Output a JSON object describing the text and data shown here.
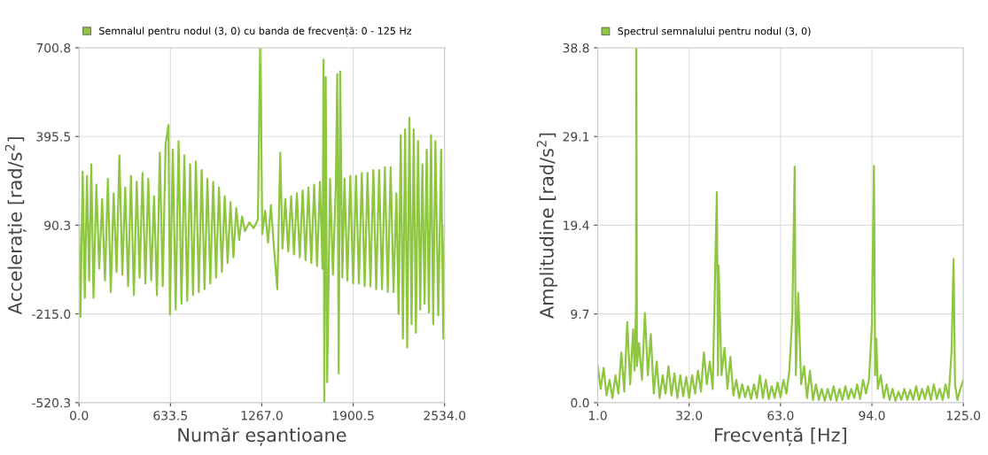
{
  "chart_data": [
    {
      "type": "line",
      "xlabel": "Număr eșantioane",
      "ylabel": "Accelerație [rad/s$^{2}$]",
      "legend": "top",
      "grid": true,
      "marker": "none",
      "line_style": "solid",
      "xlim": [
        0,
        2534
      ],
      "ylim": [
        -520.3,
        700.8
      ],
      "xticks": [
        {
          "value": 0,
          "label": "0.0"
        },
        633.5,
        {
          "value": 1267,
          "label": "1267.0"
        },
        1900.5,
        {
          "value": 2534,
          "label": "2534.0"
        }
      ],
      "yticks": [
        -520.3,
        {
          "value": -215,
          "label": "-215.0"
        },
        90.3,
        395.5,
        700.8
      ],
      "series": [
        {
          "name": "Semnalul pentru nodul (3, 0) cu banda de frecvență: 0 - 125 Hz",
          "color": "#8dc63f",
          "x": [
            0,
            10,
            25,
            40,
            55,
            70,
            85,
            100,
            120,
            140,
            160,
            180,
            200,
            220,
            240,
            260,
            280,
            300,
            320,
            340,
            360,
            380,
            400,
            420,
            440,
            460,
            480,
            500,
            520,
            540,
            560,
            580,
            600,
            620,
            630,
            650,
            670,
            690,
            710,
            730,
            750,
            770,
            790,
            810,
            830,
            850,
            870,
            890,
            910,
            930,
            950,
            970,
            990,
            1010,
            1030,
            1050,
            1070,
            1090,
            1110,
            1130,
            1150,
            1180,
            1210,
            1240,
            1255,
            1262,
            1270,
            1290,
            1310,
            1330,
            1350,
            1374,
            1395,
            1410,
            1430,
            1450,
            1470,
            1490,
            1510,
            1530,
            1550,
            1570,
            1590,
            1610,
            1630,
            1650,
            1670,
            1688,
            1695,
            1700,
            1710,
            1720,
            1740,
            1760,
            1780,
            1790,
            1800,
            1810,
            1825,
            1840,
            1860,
            1880,
            1900,
            1920,
            1940,
            1960,
            1980,
            2000,
            2020,
            2040,
            2060,
            2080,
            2100,
            2120,
            2140,
            2160,
            2180,
            2200,
            2215,
            2230,
            2245,
            2260,
            2275,
            2290,
            2305,
            2320,
            2335,
            2350,
            2365,
            2380,
            2395,
            2410,
            2425,
            2440,
            2455,
            2470,
            2490,
            2510,
            2525,
            2534
          ],
          "values": [
            90,
            -225,
            275,
            -160,
            260,
            -100,
            300,
            -160,
            230,
            -60,
            180,
            -100,
            250,
            -140,
            200,
            -70,
            330,
            -80,
            220,
            -120,
            260,
            -150,
            240,
            -90,
            270,
            -110,
            250,
            -100,
            190,
            -150,
            340,
            -120,
            370,
            435,
            -217,
            350,
            -200,
            380,
            -180,
            330,
            -170,
            300,
            -150,
            310,
            -140,
            280,
            -130,
            250,
            -110,
            240,
            -90,
            220,
            -70,
            190,
            -40,
            170,
            -20,
            150,
            40,
            120,
            70,
            100,
            80,
            110,
            700,
            470,
            60,
            140,
            30,
            160,
            20,
            -130,
            340,
            10,
            180,
            0,
            190,
            -10,
            200,
            -20,
            210,
            -30,
            220,
            -40,
            230,
            -50,
            240,
            -60,
            660,
            -520,
            600,
            -450,
            250,
            -80,
            230,
            610,
            -420,
            620,
            -90,
            250,
            -100,
            260,
            -110,
            260,
            -110,
            270,
            -120,
            270,
            -120,
            280,
            -130,
            280,
            -130,
            290,
            -140,
            290,
            -140,
            200,
            -215,
            400,
            -300,
            420,
            -330,
            460,
            -250,
            420,
            -280,
            380,
            -200,
            300,
            -180,
            350,
            -210,
            400,
            -250,
            380,
            -220,
            350,
            -300,
            90
          ]
        }
      ]
    },
    {
      "type": "line",
      "xlabel": "Frecvență [Hz]",
      "ylabel": "Amplitudine [rad/s$^{2}$]",
      "legend": "top",
      "grid": true,
      "marker": "none",
      "line_style": "solid",
      "xlim": [
        1,
        125
      ],
      "ylim": [
        0,
        38.8
      ],
      "xticks": [
        {
          "value": 1,
          "label": "1.0"
        },
        {
          "value": 32,
          "label": "32.0"
        },
        {
          "value": 63,
          "label": "63.0"
        },
        {
          "value": 94,
          "label": "94.0"
        },
        {
          "value": 125,
          "label": "125.0"
        }
      ],
      "yticks": [
        {
          "value": 0,
          "label": "0.0"
        },
        9.7,
        19.4,
        29.1,
        38.8
      ],
      "series": [
        {
          "name": "Spectrul semnalului pentru nodul (3, 0)",
          "color": "#8dc63f",
          "x": [
            1,
            2,
            3,
            4,
            5,
            6,
            7,
            8,
            9,
            10,
            11,
            12,
            13,
            13.5,
            14,
            14.1,
            14.3,
            15,
            16,
            17,
            18,
            19,
            20,
            21,
            22,
            23,
            24,
            25,
            26,
            27,
            28,
            29,
            30,
            31,
            32,
            33,
            34,
            35,
            36,
            37,
            38,
            39,
            40,
            41,
            41.4,
            41.8,
            42,
            43,
            44,
            45,
            46,
            47,
            48,
            49,
            50,
            51,
            52,
            53,
            54,
            55,
            56,
            57,
            58,
            59,
            60,
            61,
            62,
            63,
            64,
            65,
            66,
            67,
            67.8,
            68.2,
            69,
            70,
            71,
            72,
            73,
            74,
            75,
            76,
            77,
            78,
            79,
            80,
            81,
            82,
            83,
            84,
            85,
            86,
            87,
            88,
            89,
            90,
            91,
            92,
            93,
            94,
            94.7,
            95.1,
            95.5,
            96,
            97,
            98,
            99,
            100,
            101,
            102,
            103,
            104,
            105,
            106,
            107,
            108,
            109,
            110,
            111,
            112,
            113,
            114,
            115,
            116,
            117,
            118,
            119,
            120,
            121,
            121.7,
            122.2,
            123,
            124,
            125
          ],
          "values": [
            4.0,
            1.5,
            3.8,
            0.8,
            2.5,
            0.5,
            3.0,
            1.0,
            5.5,
            1.2,
            8.8,
            2.0,
            8.0,
            3.5,
            11,
            38.8,
            4,
            6.5,
            2.5,
            9.8,
            3.0,
            7.5,
            1.0,
            4.5,
            0.5,
            3.0,
            1.0,
            4.0,
            0.8,
            3.2,
            0.5,
            3.0,
            0.7,
            2.8,
            0.5,
            3.0,
            1.0,
            3.5,
            1.2,
            5.5,
            2.0,
            4.5,
            1.5,
            17,
            23.0,
            3,
            15,
            3,
            6,
            1.5,
            5,
            0.8,
            2.5,
            0.5,
            2.0,
            0.6,
            1.8,
            0.4,
            2.0,
            0.5,
            3.0,
            0.5,
            2.5,
            0.4,
            1.8,
            0.5,
            2.2,
            0.6,
            2.5,
            1.0,
            3.5,
            9.5,
            25.8,
            3,
            12,
            2,
            4,
            0.5,
            3.5,
            0.3,
            2.0,
            0.3,
            1.5,
            0.2,
            1.5,
            0.3,
            1.8,
            0.2,
            1.5,
            0.3,
            1.8,
            0.4,
            1.5,
            0.5,
            2.0,
            0.4,
            2.5,
            1.0,
            2.5,
            8.5,
            25.9,
            3,
            7,
            1.5,
            3.0,
            0.5,
            2.0,
            0.3,
            1.5,
            0.2,
            1.2,
            0.3,
            1.5,
            0.3,
            1.4,
            0.3,
            1.8,
            0.3,
            1.5,
            0.4,
            1.8,
            0.3,
            2.0,
            0.4,
            1.5,
            0.3,
            2.0,
            0.5,
            5.5,
            15.7,
            2,
            0.3,
            1.5,
            2.5
          ]
        }
      ]
    }
  ]
}
